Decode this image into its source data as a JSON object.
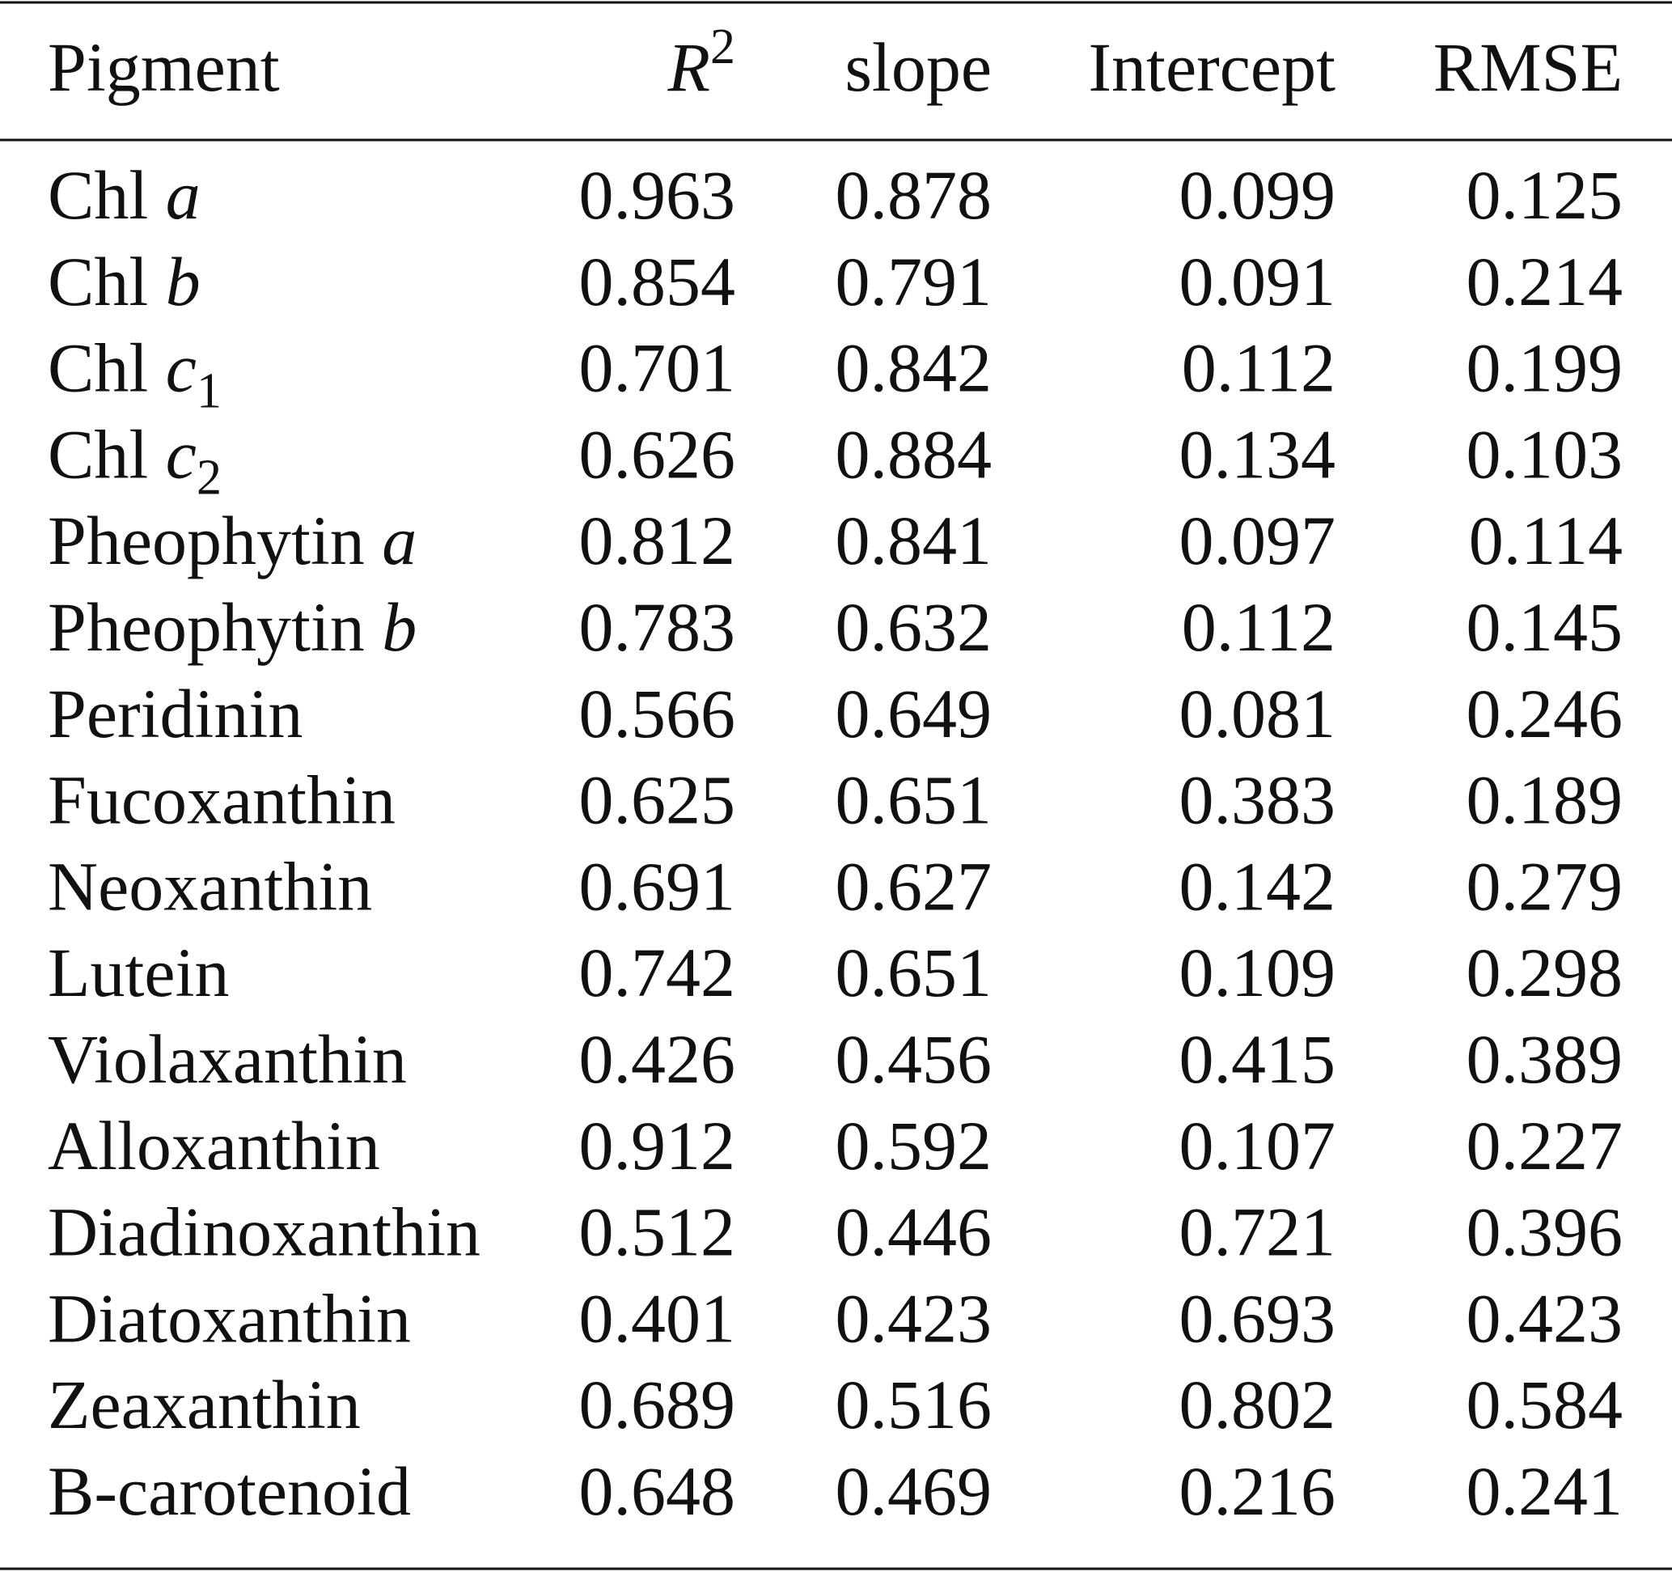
{
  "table": {
    "header": [
      "Pigment",
      {
        "text": "R",
        "sup": "2"
      },
      "slope",
      "Intercept",
      "RMSE"
    ],
    "rows": [
      [
        {
          "text": "Chl",
          "italic": "a"
        },
        "0.963",
        "0.878",
        "0.099",
        "0.125"
      ],
      [
        {
          "text": "Chl",
          "italic": "b"
        },
        "0.854",
        "0.791",
        "0.091",
        "0.214"
      ],
      [
        {
          "text": "Chl",
          "italic": "c",
          "sub": "1"
        },
        "0.701",
        "0.842",
        "0.112",
        "0.199"
      ],
      [
        {
          "text": "Chl",
          "italic": "c",
          "sub": "2"
        },
        "0.626",
        "0.884",
        "0.134",
        "0.103"
      ],
      [
        {
          "text": "Pheophytin",
          "italic": "a"
        },
        "0.812",
        "0.841",
        "0.097",
        "0.114"
      ],
      [
        {
          "text": "Pheophytin",
          "italic": "b"
        },
        "0.783",
        "0.632",
        "0.112",
        "0.145"
      ],
      [
        "Peridinin",
        "0.566",
        "0.649",
        "0.081",
        "0.246"
      ],
      [
        "Fucoxanthin",
        "0.625",
        "0.651",
        "0.383",
        "0.189"
      ],
      [
        "Neoxanthin",
        "0.691",
        "0.627",
        "0.142",
        "0.279"
      ],
      [
        "Lutein",
        "0.742",
        "0.651",
        "0.109",
        "0.298"
      ],
      [
        "Violaxanthin",
        "0.426",
        "0.456",
        "0.415",
        "0.389"
      ],
      [
        "Alloxanthin",
        "0.912",
        "0.592",
        "0.107",
        "0.227"
      ],
      [
        "Diadinoxanthin",
        "0.512",
        "0.446",
        "0.721",
        "0.396"
      ],
      [
        "Diatoxanthin",
        "0.401",
        "0.423",
        "0.693",
        "0.423"
      ],
      [
        "Zeaxanthin",
        "0.689",
        "0.516",
        "0.802",
        "0.584"
      ],
      [
        "B-carotenoid",
        "0.648",
        "0.469",
        "0.216",
        "0.241"
      ]
    ]
  }
}
